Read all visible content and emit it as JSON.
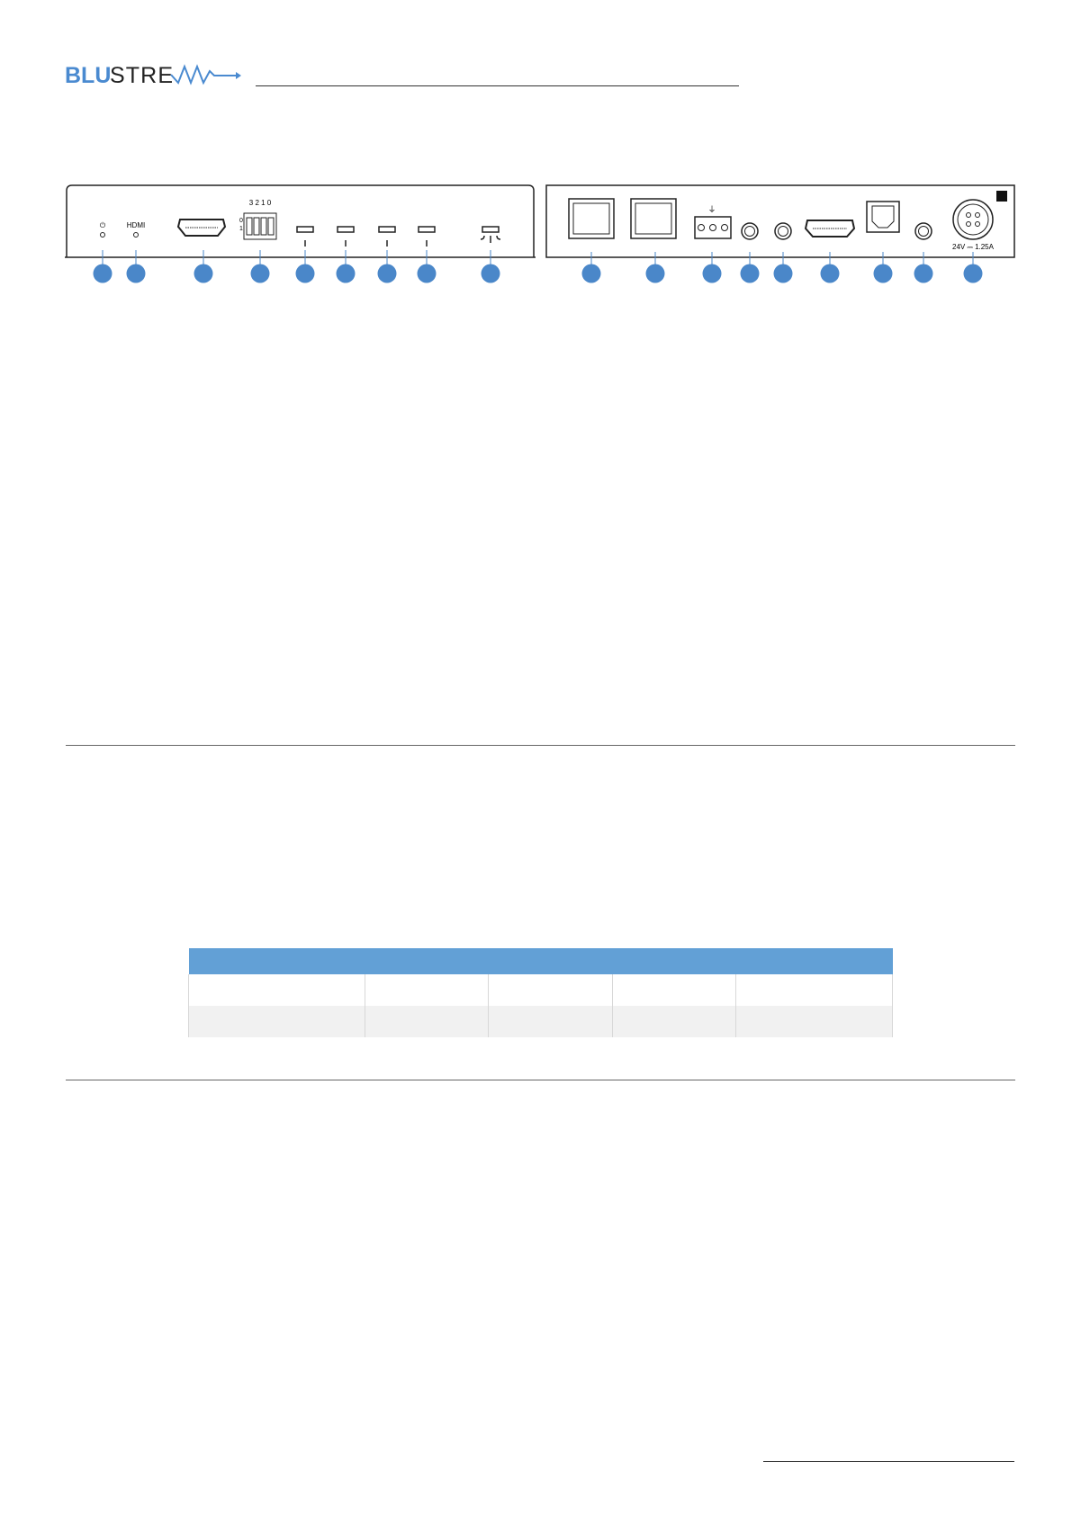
{
  "header": {
    "logo": {
      "text_bold": "BLU",
      "text_light": "STREAM",
      "color_blue": "#4a8ad0",
      "color_dark": "#222222"
    }
  },
  "front_panel": {
    "led_power_icon": "power-icon",
    "led_hdmi_label": "HDMI",
    "dip_switch_numbers": "3 2 1 0",
    "dip_switch_off": "0",
    "dip_switch_on": "1",
    "callout_count": 9
  },
  "rear_panel": {
    "power_rating": "24V ⎓ 1.25A",
    "callout_count": 9
  },
  "callout_color": "#4a87c9",
  "table": {
    "header_color": "#62a0d6",
    "columns": 5,
    "rows": 2
  }
}
